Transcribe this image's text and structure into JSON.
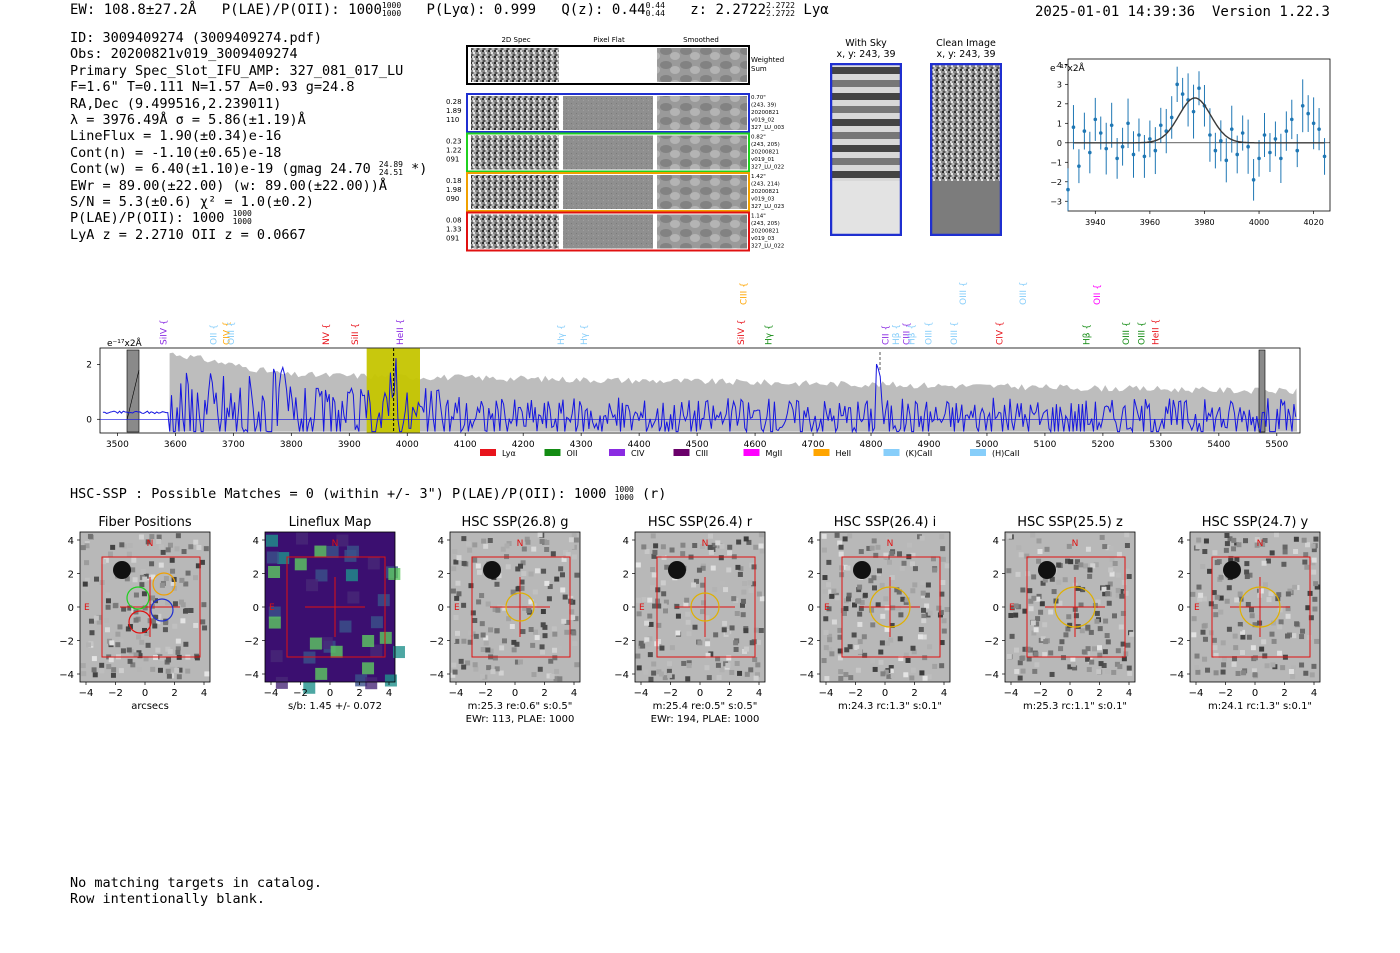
{
  "header": {
    "ew_label": "EW: 108.8±27.2Å",
    "plae_label": "P(LAE)/P(OII): 1000",
    "plae_sup": "1000",
    "plae_sub": "1000",
    "plya_label": "P(Lyα): 0.999",
    "qz_label": "Q(z): 0.44",
    "qz_sup": "0.44",
    "qz_sub": "0.44",
    "z_label": "z: 2.2722",
    "z_sup": "2.2722",
    "z_sub": "2.2722",
    "line_name": "Lyα",
    "timestamp": "2025-01-01 14:39:36",
    "version": "Version 1.22.3"
  },
  "summary": {
    "id": "ID: 3009409274 (3009409274.pdf)",
    "obs": "Obs: 20200821v019_3009409274",
    "primary": "Primary Spec_Slot_IFU_AMP: 327_081_017_LU",
    "params": "F=1.6\"  T=0.111  N=1.57  A=0.93  g=24.8",
    "radec": "RA,Dec (9.499516,2.239011)",
    "lambda_sigma": "λ = 3976.49Å   σ = 5.86(±1.19)Å",
    "lineflux": "LineFlux = 1.90(±0.34)e-16",
    "cont_n": "Cont(n) = -1.10(±0.65)e-18",
    "cont_w": "Cont(w) = 6.40(±1.10)e-19 (gmag 24.70",
    "gmag_sup": "24.89",
    "gmag_sub": "24.51",
    "cont_w_end": "*)",
    "ewr": "EWr = 89.00(±22.00) (w: 89.00(±22.00))Å",
    "sn": "S/N = 5.3(±0.6)  χ² = 1.0(±0.2)",
    "plae": "P(LAE)/P(OII): 1000",
    "plae_sup": "1000",
    "plae_sub": "1000",
    "lya_z": "LyA z = 2.2710  OII z = 0.0667"
  },
  "cutout_panel": {
    "headers": [
      "2D Spec",
      "Pixel Flat",
      "Smoothed"
    ],
    "weighted_sum": [
      "Weighted",
      "Sum"
    ],
    "rows": [
      {
        "left": [
          "0.28",
          "1.89",
          "110"
        ],
        "right": [
          "0.70\"",
          "(243, 39)",
          "20200821",
          "v019_02",
          "327_LU_003"
        ],
        "color": "#1f2fd0"
      },
      {
        "left": [
          "0.23",
          "1.22",
          "091"
        ],
        "right": [
          "0.82\"",
          "(243, 205)",
          "20200821",
          "v019_01",
          "327_LU_022"
        ],
        "color": "#1fd01f"
      },
      {
        "left": [
          "0.18",
          "1.98",
          "090"
        ],
        "right": [
          "1.42\"",
          "(243, 214)",
          "20200821",
          "v019_03",
          "327_LU_023"
        ],
        "color": "#f0a000"
      },
      {
        "left": [
          "0.08",
          "1.33",
          "091"
        ],
        "right": [
          "1.14\"",
          "(243, 205)",
          "20200821",
          "v019_03",
          "327_LU_022"
        ],
        "color": "#e01010"
      }
    ]
  },
  "with_sky": {
    "title": "With Sky",
    "coords": "x, y: 243, 39"
  },
  "clean_image": {
    "title": "Clean Image",
    "coords": "x, y: 243, 39"
  },
  "line_fit": {
    "unit": "e⁻¹⁷x2Å",
    "x_ticks": [
      "3940",
      "3960",
      "3980",
      "4000",
      "4020"
    ],
    "y_ticks": [
      "4",
      "3",
      "2",
      "1",
      "0",
      "−1",
      "−2",
      "−3"
    ]
  },
  "spectrum": {
    "unit": "e⁻¹⁷x2Å",
    "x_ticks": [
      "3500",
      "3600",
      "3700",
      "3800",
      "3900",
      "4000",
      "4100",
      "4200",
      "4300",
      "4400",
      "4500",
      "4600",
      "4700",
      "4800",
      "4900",
      "5000",
      "5100",
      "5200",
      "5300",
      "5400",
      "5500"
    ],
    "y_ticks": [
      "2",
      "0"
    ],
    "line_labels": [
      "SiIV",
      "OII",
      "CIV",
      "OIII",
      "NV",
      "SiII",
      "HeII",
      "Hγ",
      "Hγ",
      "CIII",
      "SiIV",
      "Hγ",
      "CII",
      "Hβ",
      "CIII",
      "Hβ",
      "OIII",
      "OIII",
      "OIII",
      "CIV",
      "OIII",
      "Hβ",
      "OII",
      "OIII",
      "OIII",
      "HeII"
    ],
    "legend": [
      "Lyα",
      "OII",
      "CIV",
      "CIII",
      "MgII",
      "HeII",
      "(K)CaII",
      "(H)CaII"
    ],
    "legend_colors": [
      "#e8141c",
      "#148c14",
      "#8a2be2",
      "#6a006a",
      "#ff00ff",
      "#ffa500",
      "#87cefa",
      "#87cefa"
    ]
  },
  "hsc": {
    "line": "HSC-SSP : Possible Matches = 0 (within +/- 3\")  P(LAE)/P(OII): 1000",
    "sup": "1000",
    "sub": "1000",
    "suffix": "(r)"
  },
  "cutouts": [
    {
      "title": "Fiber Positions",
      "caption1": "arcsecs",
      "caption2": ""
    },
    {
      "title": "Lineflux Map",
      "caption1": "s/b: 1.45 +/- 0.072",
      "caption2": ""
    },
    {
      "title": "HSC SSP(26.8) g",
      "caption1": "m:25.3  re:0.6\"  s:0.5\"",
      "caption2": "EWr: 113, PLAE: 1000"
    },
    {
      "title": "HSC SSP(26.4) r",
      "caption1": "m:25.4  re:0.5\"  s:0.5\"",
      "caption2": "EWr: 194, PLAE: 1000"
    },
    {
      "title": "HSC SSP(26.4) i",
      "caption1": "m:24.3 rc:1.3\"  s:0.1\"",
      "caption2": ""
    },
    {
      "title": "HSC SSP(25.5) z",
      "caption1": "m:25.3 rc:1.1\"  s:0.1\"",
      "caption2": ""
    },
    {
      "title": "HSC SSP(24.7) y",
      "caption1": "m:24.1 rc:1.3\"  s:0.1\"",
      "caption2": ""
    }
  ],
  "cutout_axis": {
    "ticks": [
      "4",
      "2",
      "0",
      "−2",
      "−4"
    ],
    "xticks": [
      "−4",
      "−2",
      "0",
      "2",
      "4"
    ],
    "north": "N",
    "east": "E"
  },
  "bottom_note": [
    "No matching targets in catalog.",
    "Row intentionally blank."
  ],
  "chart_data": [
    {
      "type": "line",
      "title": "",
      "xlabel": "",
      "ylabel": "e-17x2Å",
      "xlim": [
        3930,
        4026
      ],
      "ylim": [
        -3.5,
        4.3
      ],
      "x": [
        3930,
        3932,
        3934,
        3936,
        3938,
        3940,
        3942,
        3944,
        3946,
        3948,
        3950,
        3952,
        3954,
        3956,
        3958,
        3960,
        3962,
        3964,
        3966,
        3968,
        3970,
        3972,
        3974,
        3976,
        3978,
        3980,
        3982,
        3984,
        3986,
        3988,
        3990,
        3992,
        3994,
        3996,
        3998,
        4000,
        4002,
        4004,
        4006,
        4008,
        4010,
        4012,
        4014,
        4016,
        4018,
        4020,
        4022,
        4024
      ],
      "values": [
        -2.4,
        0.8,
        -1.2,
        0.6,
        -0.5,
        1.2,
        0.5,
        -0.3,
        0.9,
        -0.8,
        -0.2,
        1.0,
        -0.6,
        0.4,
        -0.7,
        0.2,
        -0.4,
        0.9,
        0.6,
        1.3,
        3.0,
        2.5,
        2.2,
        1.6,
        2.8,
        1.9,
        0.4,
        -0.4,
        0.1,
        -0.9,
        0.7,
        -0.6,
        0.5,
        -0.2,
        -1.9,
        -0.8,
        0.4,
        -0.5,
        0.2,
        -0.8,
        0.6,
        1.2,
        -0.4,
        1.9,
        1.5,
        1.0,
        0.7,
        -0.7
      ],
      "model": "gaussian",
      "center": 3976.49,
      "amplitude": 2.3,
      "sigma": 5.86
    },
    {
      "type": "line",
      "title": "",
      "ylabel": "e-17x2Å",
      "xlim": [
        3470,
        5540
      ],
      "ylim": [
        -0.5,
        2.6
      ],
      "series": [
        {
          "name": "spectrum"
        },
        {
          "name": "error"
        }
      ],
      "highlight_band": [
        3930,
        4022
      ],
      "line_marker": 3976.49,
      "continuum": 0
    }
  ]
}
